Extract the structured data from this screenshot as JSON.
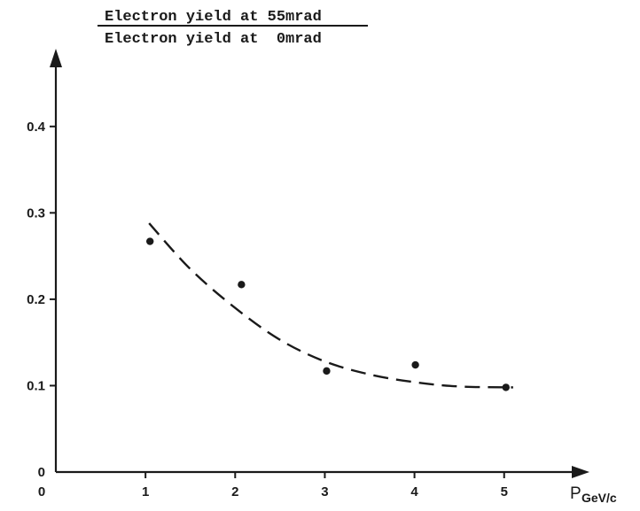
{
  "chart_data": {
    "type": "scatter",
    "ylabel_numerator": "Electron yield at 55mrad",
    "ylabel_denominator": "Electron yield at  0mrad",
    "xlabel_main": "P",
    "xlabel_sub": "GeV/c",
    "xlim": [
      0,
      6.1
    ],
    "ylim": [
      0,
      0.49
    ],
    "x_ticks": [
      {
        "value": 0,
        "label": "0"
      },
      {
        "value": 1,
        "label": "1"
      },
      {
        "value": 2,
        "label": "2"
      },
      {
        "value": 3,
        "label": "3"
      },
      {
        "value": 4,
        "label": "4"
      },
      {
        "value": 5,
        "label": "5"
      }
    ],
    "y_ticks": [
      {
        "value": 0,
        "label": "0"
      },
      {
        "value": 0.1,
        "label": "0.1"
      },
      {
        "value": 0.2,
        "label": "0.2"
      },
      {
        "value": 0.3,
        "label": "0.3"
      },
      {
        "value": 0.4,
        "label": "0.4"
      }
    ],
    "points": [
      {
        "x": 1.05,
        "y": 0.267
      },
      {
        "x": 2.07,
        "y": 0.217
      },
      {
        "x": 3.02,
        "y": 0.117
      },
      {
        "x": 4.01,
        "y": 0.124
      },
      {
        "x": 5.02,
        "y": 0.098
      }
    ],
    "fit_curve": {
      "style": "dashed",
      "x": [
        1.04,
        1.5,
        2.0,
        2.5,
        3.0,
        3.5,
        4.0,
        4.5,
        5.1
      ],
      "y": [
        0.288,
        0.235,
        0.19,
        0.153,
        0.128,
        0.113,
        0.104,
        0.099,
        0.098
      ]
    },
    "grid": false
  }
}
